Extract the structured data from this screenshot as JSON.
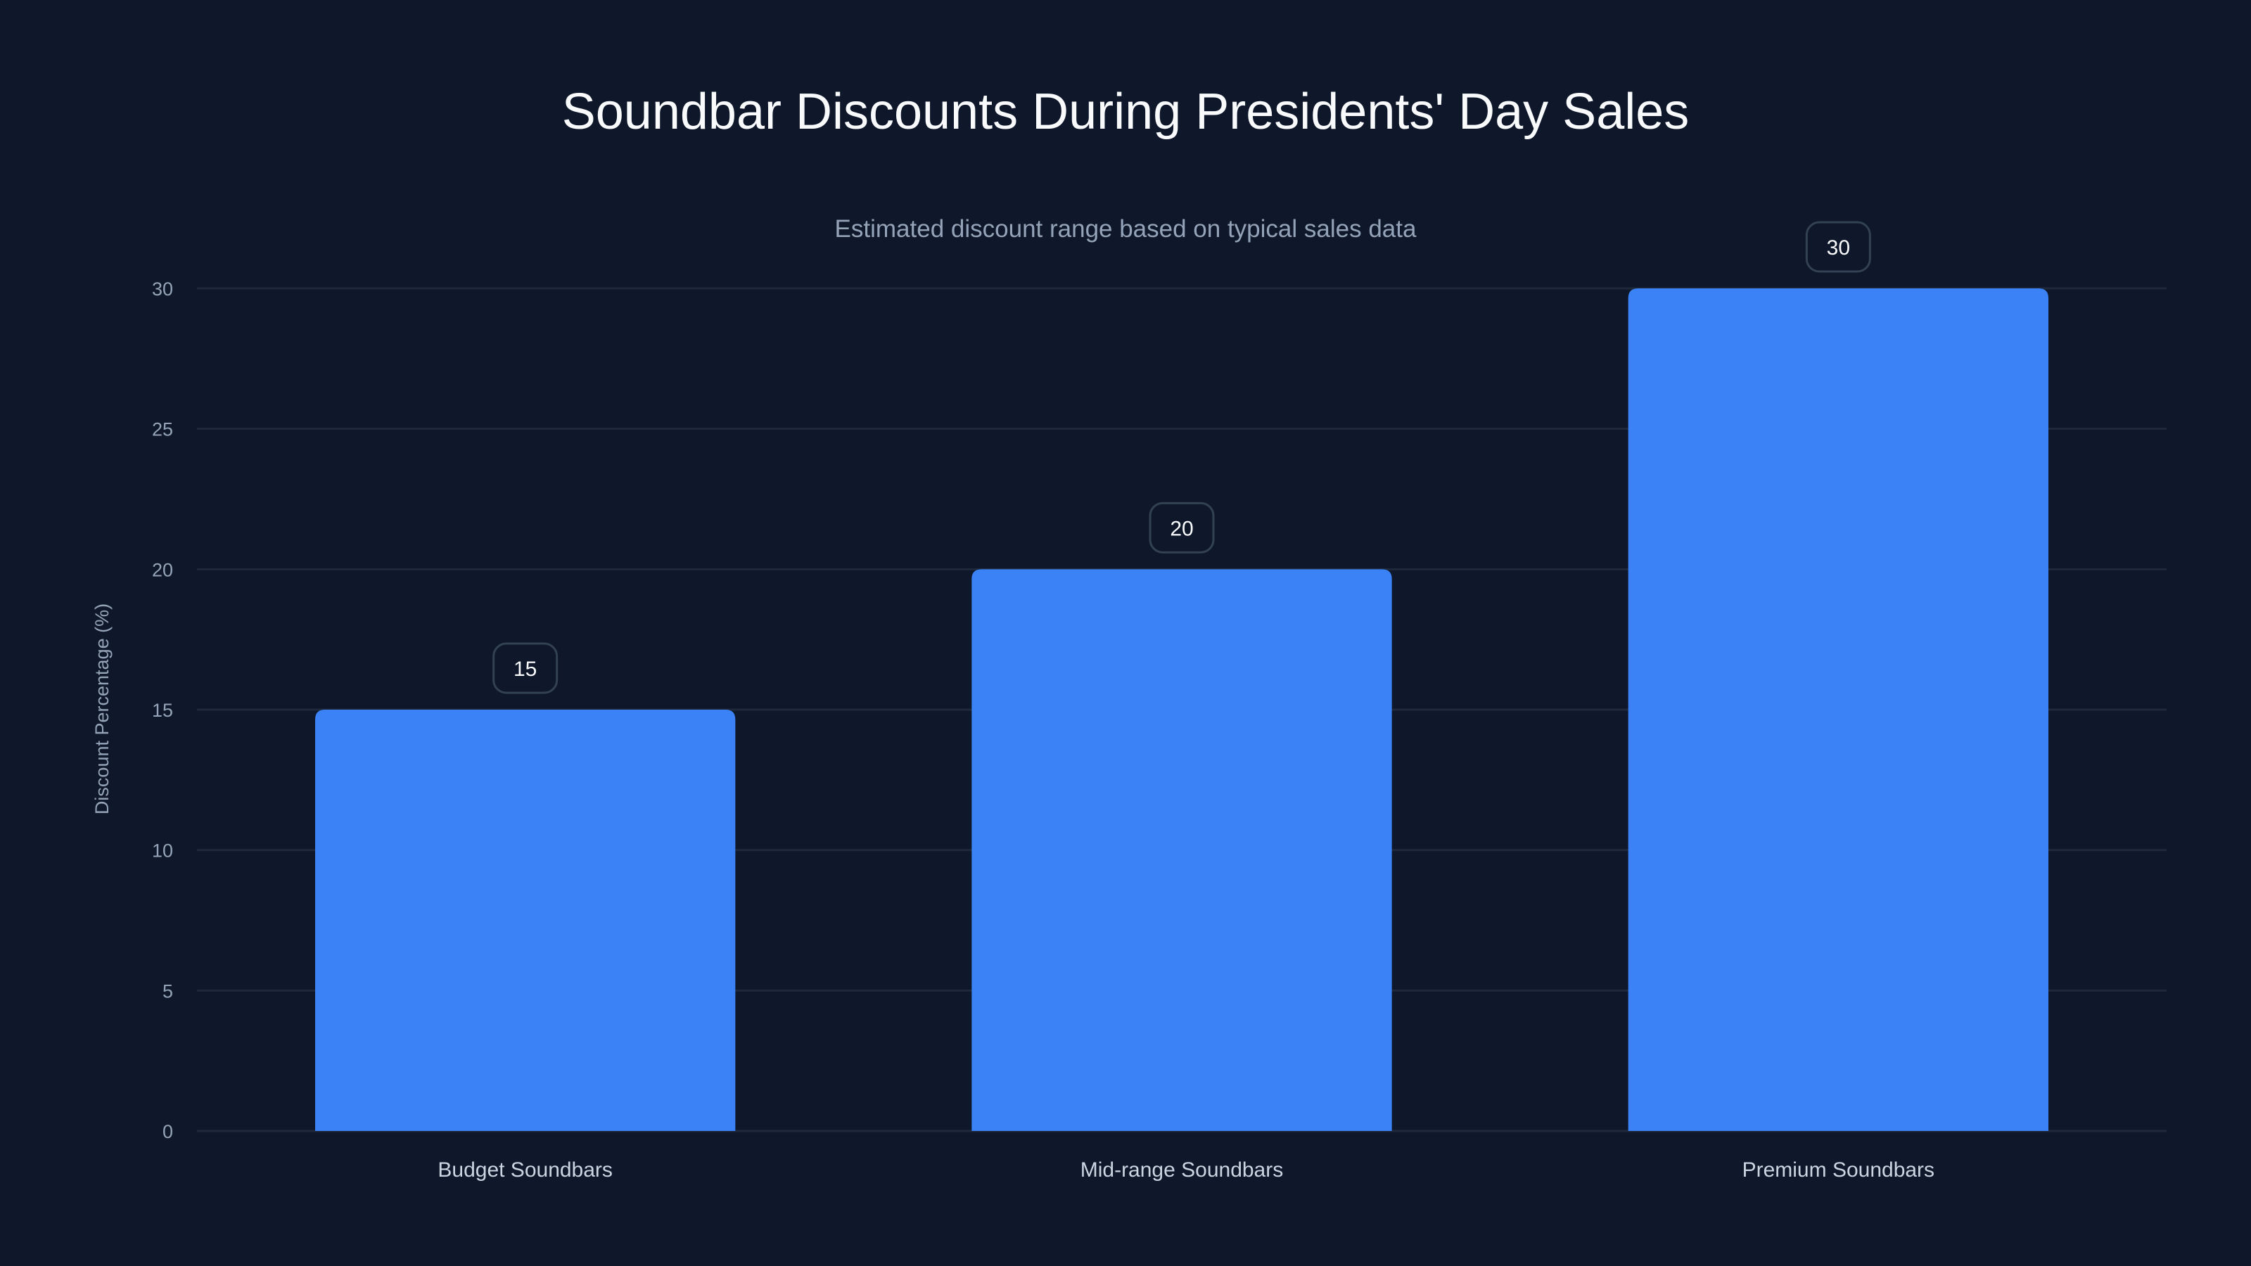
{
  "chart_data": {
    "type": "bar",
    "title": "Soundbar Discounts During Presidents' Day Sales",
    "subtitle": "Estimated discount range based on typical sales data",
    "categories": [
      "Budget Soundbars",
      "Mid-range Soundbars",
      "Premium Soundbars"
    ],
    "values": [
      15,
      20,
      30
    ],
    "data_labels": [
      "15",
      "20",
      "30"
    ],
    "xlabel": "",
    "ylabel": "Discount Percentage (%)",
    "ylim": [
      0,
      30
    ],
    "yticks": [
      0,
      5,
      10,
      15,
      20,
      25,
      30
    ],
    "grid": true,
    "bar_color": "#3b82f6",
    "background": "#0f172a"
  }
}
